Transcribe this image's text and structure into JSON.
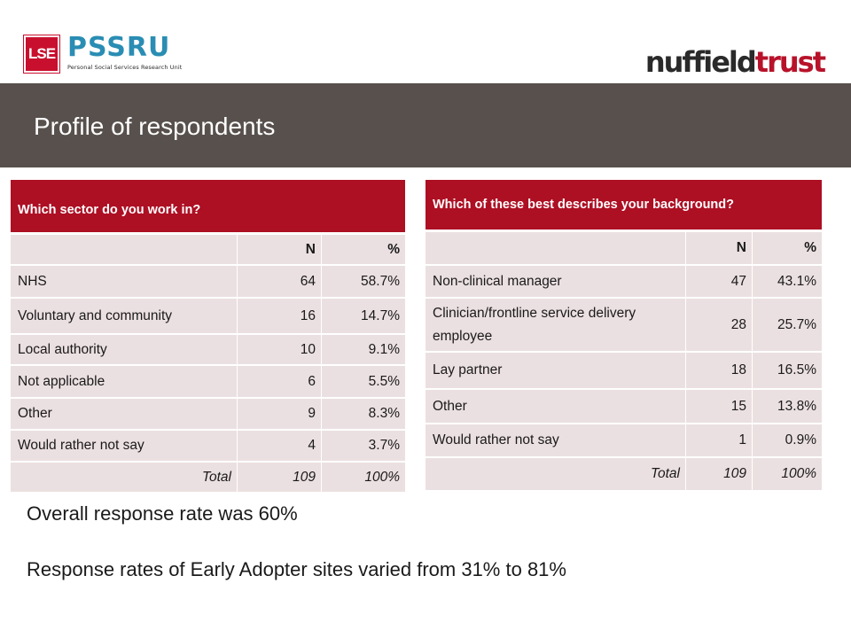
{
  "logos": {
    "lse": "LSE",
    "pssru": "PSSRU",
    "pssru_sub": "Personal Social Services Research Unit",
    "nuffield_left": "nuffield",
    "nuffield_right": "trust"
  },
  "slide": {
    "title": "Profile of respondents"
  },
  "table_sector": {
    "question": "Which sector do you work in?",
    "col_n": "N",
    "col_pct": "%",
    "rows": [
      {
        "label": "NHS",
        "n": "64",
        "pct": "58.7%"
      },
      {
        "label": "Voluntary and community",
        "n": "16",
        "pct": "14.7%"
      },
      {
        "label": "Local authority",
        "n": "10",
        "pct": "9.1%"
      },
      {
        "label": "Not applicable",
        "n": "6",
        "pct": "5.5%"
      },
      {
        "label": "Other",
        "n": "9",
        "pct": "8.3%"
      },
      {
        "label": "Would rather not say",
        "n": "4",
        "pct": "3.7%"
      }
    ],
    "total_label": "Total",
    "total_n": "109",
    "total_pct": "100%"
  },
  "table_background": {
    "question": "Which of these best describes your background?",
    "col_n": "N",
    "col_pct": "%",
    "rows": [
      {
        "label": "Non-clinical manager",
        "n": "47",
        "pct": "43.1%"
      },
      {
        "label": "Clinician/frontline service delivery employee",
        "n": "28",
        "pct": "25.7%"
      },
      {
        "label": "Lay partner",
        "n": "18",
        "pct": "16.5%"
      },
      {
        "label": "Other",
        "n": "15",
        "pct": "13.8%"
      },
      {
        "label": "Would rather not say",
        "n": "1",
        "pct": "0.9%"
      }
    ],
    "total_label": "Total",
    "total_n": "109",
    "total_pct": "100%"
  },
  "notes": {
    "response_rate": "Overall response rate was 60%",
    "early_adopter": "Response rates of Early Adopter sites varied from 31% to 81%"
  },
  "colors": {
    "title_band": "#57504c",
    "table_header": "#ad0f23",
    "table_cell": "#ebe0e1",
    "lse_red": "#c8102e",
    "pssru_blue": "#2a8db3"
  }
}
